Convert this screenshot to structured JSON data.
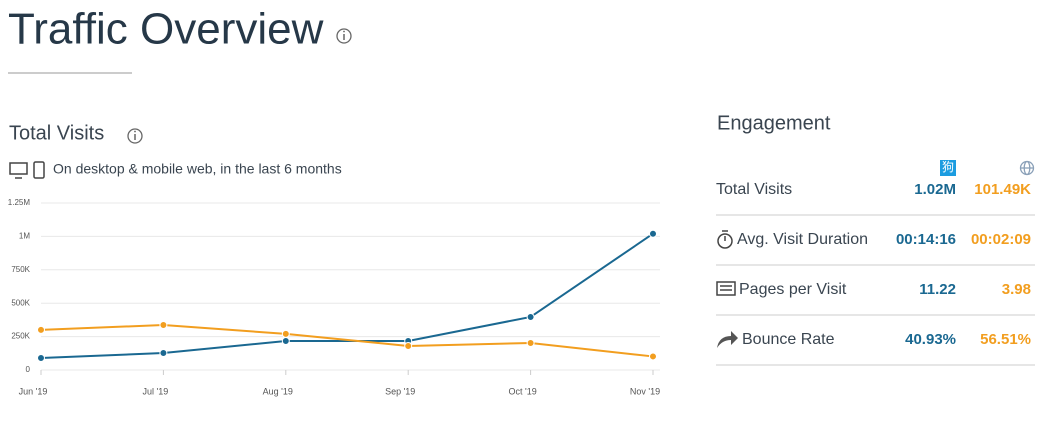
{
  "header": {
    "title": "Traffic Overview"
  },
  "chart_data": {
    "type": "line",
    "title": "Total Visits",
    "subtitle": "On desktop & mobile web, in the last 6 months",
    "categories": [
      "Jun '19",
      "Jul '19",
      "Aug '19",
      "Sep '19",
      "Oct '19",
      "Nov '19"
    ],
    "series": [
      {
        "color": "#1a6891",
        "values": [
          90000,
          127000,
          217000,
          217000,
          397000,
          1020000
        ]
      },
      {
        "color": "#f29e1f",
        "values": [
          300000,
          337000,
          270000,
          180000,
          202000,
          101490
        ]
      }
    ],
    "ylim": [
      0,
      1250000
    ],
    "yticks": [
      0,
      {
        "value": 250000,
        "label": "250K"
      },
      {
        "value": 500000,
        "label": "500K"
      },
      {
        "value": 750000,
        "label": "750K"
      },
      {
        "value": 1000000,
        "label": "1M"
      },
      {
        "value": 1250000,
        "label": "1.25M"
      }
    ],
    "grid": true
  },
  "engagement": {
    "title": "Engagement",
    "site_icon": "狗",
    "rows": [
      {
        "label": "Total Visits",
        "site": "1.02M",
        "global": "101.49K"
      },
      {
        "label": "Avg. Visit Duration",
        "site": "00:14:16",
        "global": "00:02:09"
      },
      {
        "label": "Pages per Visit",
        "site": "11.22",
        "global": "3.98"
      },
      {
        "label": "Bounce Rate",
        "site": "40.93%",
        "global": "56.51%"
      }
    ]
  }
}
